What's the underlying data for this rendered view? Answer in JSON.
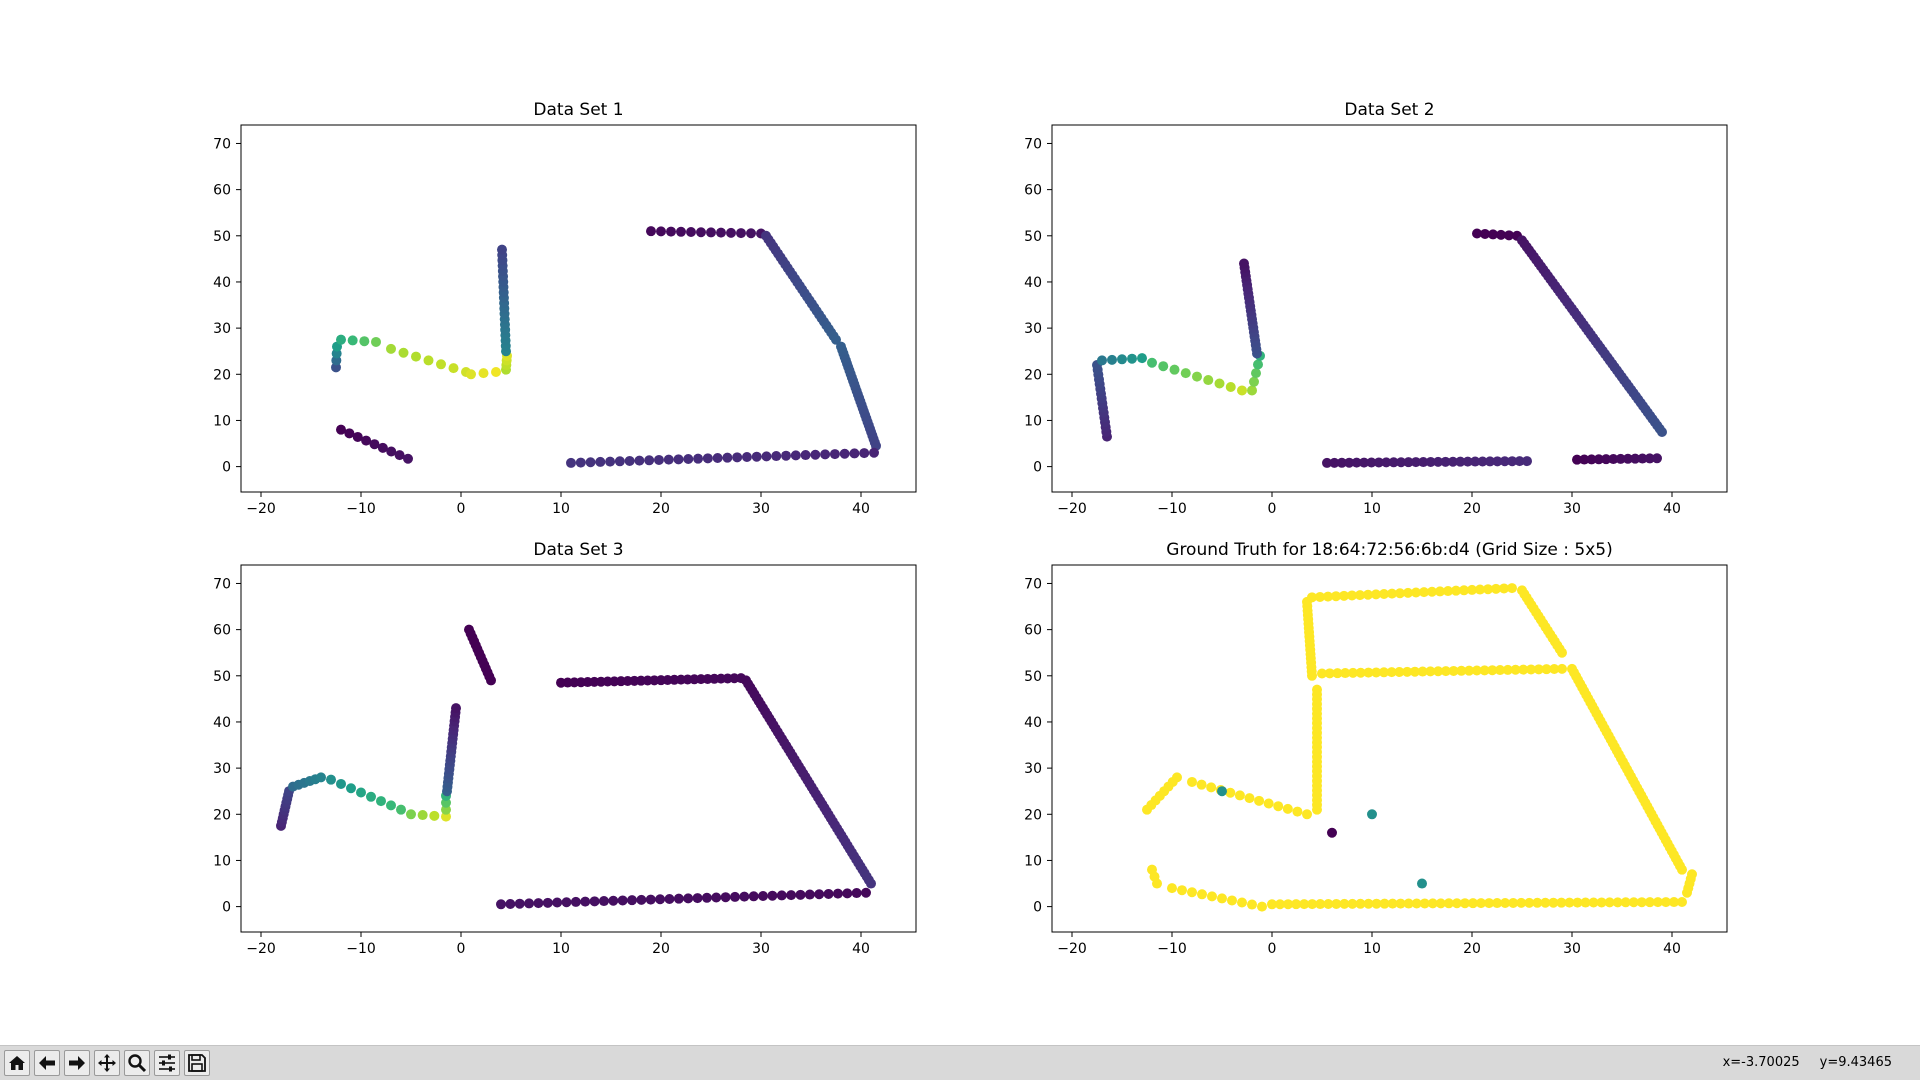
{
  "status": {
    "x_readout": "x=-3.70025",
    "y_readout": "y=9.43465"
  },
  "toolbar": {
    "buttons": [
      {
        "name": "home-button",
        "icon": "home-icon"
      },
      {
        "name": "back-button",
        "icon": "back-arrow-icon"
      },
      {
        "name": "forward-button",
        "icon": "forward-arrow-icon"
      },
      {
        "name": "pan-button",
        "icon": "move-icon"
      },
      {
        "name": "zoom-button",
        "icon": "zoom-icon"
      },
      {
        "name": "configure-subplots-button",
        "icon": "sliders-icon"
      },
      {
        "name": "save-button",
        "icon": "floppy-disk-icon"
      }
    ]
  },
  "colormap": "viridis",
  "chart_data": [
    {
      "type": "scatter",
      "title": "Data Set 1",
      "xlim": [
        -22,
        45.5
      ],
      "ylim": [
        -5.5,
        74
      ],
      "xticks": [
        -20,
        -10,
        0,
        10,
        20,
        30,
        40
      ],
      "yticks": [
        0,
        10,
        20,
        30,
        40,
        50,
        60,
        70
      ],
      "color_values": "viridis 0-1",
      "segments": [
        {
          "from": [
            -12,
            8
          ],
          "to": [
            -5.3,
            1.7
          ],
          "n": 9,
          "c": [
            0.0,
            0.05
          ]
        },
        {
          "from": [
            -12.5,
            21.5
          ],
          "to": [
            -12.4,
            26
          ],
          "n": 4,
          "c": [
            0.25,
            0.55
          ]
        },
        {
          "from": [
            -12,
            27.5
          ],
          "to": [
            -8.5,
            27
          ],
          "n": 4,
          "c": [
            0.62,
            0.78
          ]
        },
        {
          "from": [
            -7,
            25.5
          ],
          "to": [
            0.5,
            20.5
          ],
          "n": 7,
          "c": [
            0.86,
            0.93
          ]
        },
        {
          "from": [
            1,
            20
          ],
          "to": [
            3.5,
            20.5
          ],
          "n": 3,
          "c": [
            0.95,
            0.98
          ]
        },
        {
          "from": [
            4.5,
            21
          ],
          "to": [
            4.6,
            24
          ],
          "n": 4,
          "c": [
            0.88,
            0.95
          ]
        },
        {
          "from": [
            4.5,
            25
          ],
          "to": [
            4.1,
            47
          ],
          "n": 20,
          "c": [
            0.45,
            0.2
          ]
        },
        {
          "from": [
            19,
            51
          ],
          "to": [
            30,
            50.5
          ],
          "n": 12,
          "c": [
            0.02,
            0.05
          ]
        },
        {
          "from": [
            30.5,
            50
          ],
          "to": [
            37.5,
            27.5
          ],
          "n": 30,
          "c": [
            0.15,
            0.3
          ]
        },
        {
          "from": [
            38,
            26
          ],
          "to": [
            41.5,
            4.5
          ],
          "n": 30,
          "c": [
            0.3,
            0.2
          ]
        },
        {
          "from": [
            41.3,
            3
          ],
          "to": [
            11,
            0.8
          ],
          "n": 32,
          "c": [
            0.1,
            0.15
          ]
        }
      ]
    },
    {
      "type": "scatter",
      "title": "Data Set 2",
      "xlim": [
        -22,
        45.5
      ],
      "ylim": [
        -5.5,
        74
      ],
      "xticks": [
        -20,
        -10,
        0,
        10,
        20,
        30,
        40
      ],
      "yticks": [
        0,
        10,
        20,
        30,
        40,
        50,
        60,
        70
      ],
      "color_values": "viridis 0-1",
      "segments": [
        {
          "from": [
            -16.5,
            6.5
          ],
          "to": [
            -17.5,
            22
          ],
          "n": 16,
          "c": [
            0.1,
            0.25
          ]
        },
        {
          "from": [
            -17,
            23
          ],
          "to": [
            -13,
            23.5
          ],
          "n": 5,
          "c": [
            0.4,
            0.55
          ]
        },
        {
          "from": [
            -12,
            22.5
          ],
          "to": [
            -3,
            16.5
          ],
          "n": 9,
          "c": [
            0.7,
            0.92
          ]
        },
        {
          "from": [
            -2,
            16.5
          ],
          "to": [
            -1.2,
            24
          ],
          "n": 5,
          "c": [
            0.85,
            0.65
          ]
        },
        {
          "from": [
            -1.5,
            24.5
          ],
          "to": [
            -2.8,
            44
          ],
          "n": 22,
          "c": [
            0.25,
            0.05
          ]
        },
        {
          "from": [
            20.5,
            50.5
          ],
          "to": [
            24.5,
            50
          ],
          "n": 6,
          "c": [
            0.0,
            0.0
          ]
        },
        {
          "from": [
            25,
            49
          ],
          "to": [
            39,
            7.5
          ],
          "n": 60,
          "c": [
            0.05,
            0.25
          ]
        },
        {
          "from": [
            5.5,
            0.8
          ],
          "to": [
            25.5,
            1.2
          ],
          "n": 28,
          "c": [
            0.05,
            0.12
          ]
        },
        {
          "from": [
            30.5,
            1.5
          ],
          "to": [
            38.5,
            1.8
          ],
          "n": 12,
          "c": [
            0.0,
            0.05
          ]
        }
      ]
    },
    {
      "type": "scatter",
      "title": "Data Set 3",
      "xlim": [
        -22,
        45.5
      ],
      "ylim": [
        -5.5,
        74
      ],
      "xticks": [
        -20,
        -10,
        0,
        10,
        20,
        30,
        40
      ],
      "yticks": [
        0,
        10,
        20,
        30,
        40,
        50,
        60,
        70
      ],
      "color_values": "viridis 0-1",
      "segments": [
        {
          "from": [
            -18,
            17.5
          ],
          "to": [
            -17.2,
            25
          ],
          "n": 10,
          "c": [
            0.1,
            0.2
          ]
        },
        {
          "from": [
            -16.8,
            26
          ],
          "to": [
            -14,
            28
          ],
          "n": 6,
          "c": [
            0.35,
            0.45
          ]
        },
        {
          "from": [
            -13,
            27.5
          ],
          "to": [
            -6,
            21
          ],
          "n": 8,
          "c": [
            0.5,
            0.7
          ]
        },
        {
          "from": [
            -5,
            20
          ],
          "to": [
            -1.5,
            19.5
          ],
          "n": 4,
          "c": [
            0.8,
            0.95
          ]
        },
        {
          "from": [
            -1.5,
            21
          ],
          "to": [
            -1.5,
            24
          ],
          "n": 3,
          "c": [
            0.82,
            0.65
          ]
        },
        {
          "from": [
            -1.4,
            25
          ],
          "to": [
            -0.5,
            43
          ],
          "n": 20,
          "c": [
            0.3,
            0.05
          ]
        },
        {
          "from": [
            0.8,
            60
          ],
          "to": [
            3,
            49
          ],
          "n": 14,
          "c": [
            0.0,
            0.0
          ]
        },
        {
          "from": [
            10,
            48.5
          ],
          "to": [
            28,
            49.5
          ],
          "n": 28,
          "c": [
            0.0,
            0.02
          ]
        },
        {
          "from": [
            28.5,
            49
          ],
          "to": [
            41,
            5
          ],
          "n": 60,
          "c": [
            0.02,
            0.15
          ]
        },
        {
          "from": [
            40.5,
            3
          ],
          "to": [
            4,
            0.5
          ],
          "n": 40,
          "c": [
            0.02,
            0.05
          ]
        }
      ]
    },
    {
      "type": "scatter",
      "title": "Ground Truth for 18:64:72:56:6b:d4 (Grid Size : 5x5)",
      "xlim": [
        -22,
        45.5
      ],
      "ylim": [
        -5.5,
        74
      ],
      "xticks": [
        -20,
        -10,
        0,
        10,
        20,
        30,
        40
      ],
      "yticks": [
        0,
        10,
        20,
        30,
        40,
        50,
        60,
        70
      ],
      "color_values": "viridis 0-1",
      "segments": [
        {
          "from": [
            -12,
            8
          ],
          "to": [
            -11.5,
            5
          ],
          "n": 3,
          "c": [
            1,
            1
          ]
        },
        {
          "from": [
            -10,
            4
          ],
          "to": [
            -1,
            0
          ],
          "n": 10,
          "c": [
            1,
            1
          ]
        },
        {
          "from": [
            0,
            0.5
          ],
          "to": [
            41,
            1
          ],
          "n": 52,
          "c": [
            1,
            1
          ]
        },
        {
          "from": [
            41.5,
            3
          ],
          "to": [
            42,
            7
          ],
          "n": 5,
          "c": [
            1,
            1
          ]
        },
        {
          "from": [
            41,
            8
          ],
          "to": [
            30,
            51.5
          ],
          "n": 55,
          "c": [
            1,
            1
          ]
        },
        {
          "from": [
            29,
            51.5
          ],
          "to": [
            5,
            50.5
          ],
          "n": 32,
          "c": [
            1,
            1
          ]
        },
        {
          "from": [
            4,
            50
          ],
          "to": [
            3.5,
            66
          ],
          "n": 18,
          "c": [
            1,
            1
          ]
        },
        {
          "from": [
            4,
            67
          ],
          "to": [
            24,
            69
          ],
          "n": 26,
          "c": [
            1,
            1
          ]
        },
        {
          "from": [
            25,
            68.5
          ],
          "to": [
            29,
            55
          ],
          "n": 18,
          "c": [
            1,
            1
          ]
        },
        {
          "from": [
            4.5,
            47
          ],
          "to": [
            4.5,
            21
          ],
          "n": 26,
          "c": [
            1,
            1
          ]
        },
        {
          "from": [
            3.5,
            20
          ],
          "to": [
            -8,
            27
          ],
          "n": 13,
          "c": [
            1,
            1
          ]
        },
        {
          "from": [
            -9.5,
            28
          ],
          "to": [
            -12.5,
            21
          ],
          "n": 8,
          "c": [
            1,
            1
          ]
        }
      ],
      "points": [
        {
          "x": -5,
          "y": 25,
          "c": 0.5
        },
        {
          "x": 6,
          "y": 16,
          "c": 0.0
        },
        {
          "x": 10,
          "y": 20,
          "c": 0.5
        },
        {
          "x": 15,
          "y": 5,
          "c": 0.5
        }
      ]
    }
  ]
}
